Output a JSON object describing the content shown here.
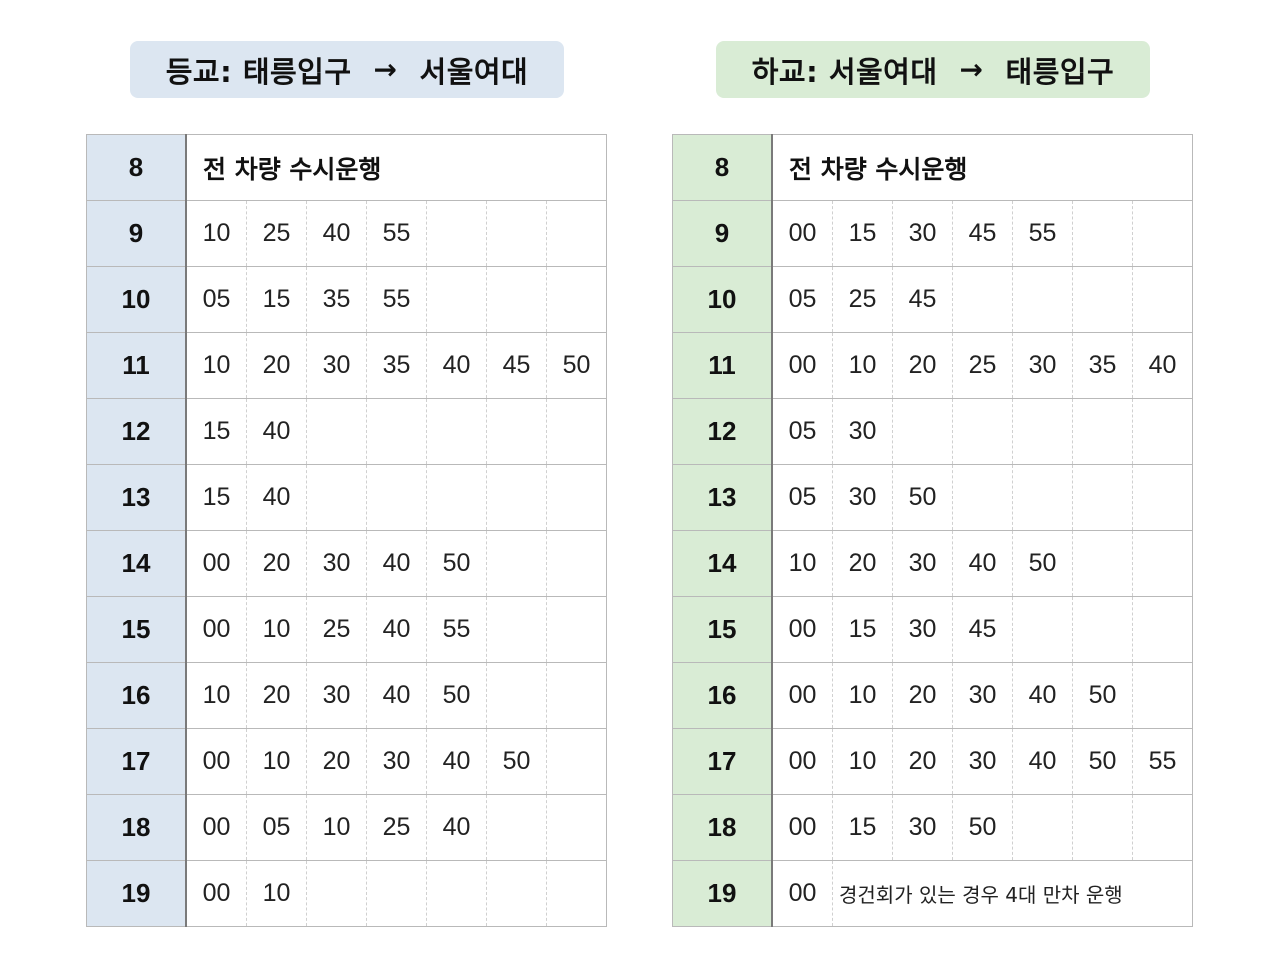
{
  "left": {
    "title": {
      "prefix": "등교:",
      "from": "태릉입구",
      "arrow": "→",
      "to": "서울여대"
    },
    "rows": [
      {
        "hour": "8",
        "note": "전 차량 수시운행"
      },
      {
        "hour": "9",
        "minutes": [
          "10",
          "25",
          "40",
          "55"
        ]
      },
      {
        "hour": "10",
        "minutes": [
          "05",
          "15",
          "35",
          "55"
        ]
      },
      {
        "hour": "11",
        "minutes": [
          "10",
          "20",
          "30",
          "35",
          "40",
          "45",
          "50"
        ]
      },
      {
        "hour": "12",
        "minutes": [
          "15",
          "40"
        ]
      },
      {
        "hour": "13",
        "minutes": [
          "15",
          "40"
        ]
      },
      {
        "hour": "14",
        "minutes": [
          "00",
          "20",
          "30",
          "40",
          "50"
        ]
      },
      {
        "hour": "15",
        "minutes": [
          "00",
          "10",
          "25",
          "40",
          "55"
        ]
      },
      {
        "hour": "16",
        "minutes": [
          "10",
          "20",
          "30",
          "40",
          "50"
        ]
      },
      {
        "hour": "17",
        "minutes": [
          "00",
          "10",
          "20",
          "30",
          "40",
          "50"
        ]
      },
      {
        "hour": "18",
        "minutes": [
          "00",
          "05",
          "10",
          "25",
          "40"
        ]
      },
      {
        "hour": "19",
        "minutes": [
          "00",
          "10"
        ]
      }
    ]
  },
  "right": {
    "title": {
      "prefix": "하교:",
      "from": "서울여대",
      "arrow": "→",
      "to": "태릉입구"
    },
    "rows": [
      {
        "hour": "8",
        "note": "전 차량 수시운행"
      },
      {
        "hour": "9",
        "minutes": [
          "00",
          "15",
          "30",
          "45",
          "55"
        ]
      },
      {
        "hour": "10",
        "minutes": [
          "05",
          "25",
          "45"
        ]
      },
      {
        "hour": "11",
        "minutes": [
          "00",
          "10",
          "20",
          "25",
          "30",
          "35",
          "40"
        ]
      },
      {
        "hour": "12",
        "minutes": [
          "05",
          "30"
        ]
      },
      {
        "hour": "13",
        "minutes": [
          "05",
          "30",
          "50"
        ]
      },
      {
        "hour": "14",
        "minutes": [
          "10",
          "20",
          "30",
          "40",
          "50"
        ]
      },
      {
        "hour": "15",
        "minutes": [
          "00",
          "15",
          "30",
          "45"
        ]
      },
      {
        "hour": "16",
        "minutes": [
          "00",
          "10",
          "20",
          "30",
          "40",
          "50"
        ]
      },
      {
        "hour": "17",
        "minutes": [
          "00",
          "10",
          "20",
          "30",
          "40",
          "50",
          "55"
        ]
      },
      {
        "hour": "18",
        "minutes": [
          "00",
          "15",
          "30",
          "50"
        ]
      },
      {
        "hour": "19",
        "minutes": [
          "00"
        ],
        "note": "경건회가 있는 경우 4대 만차 운행"
      }
    ]
  },
  "colors": {
    "left_accent": "#dce6f1",
    "right_accent": "#d9ecd5",
    "grid": "#b9b9b9"
  }
}
